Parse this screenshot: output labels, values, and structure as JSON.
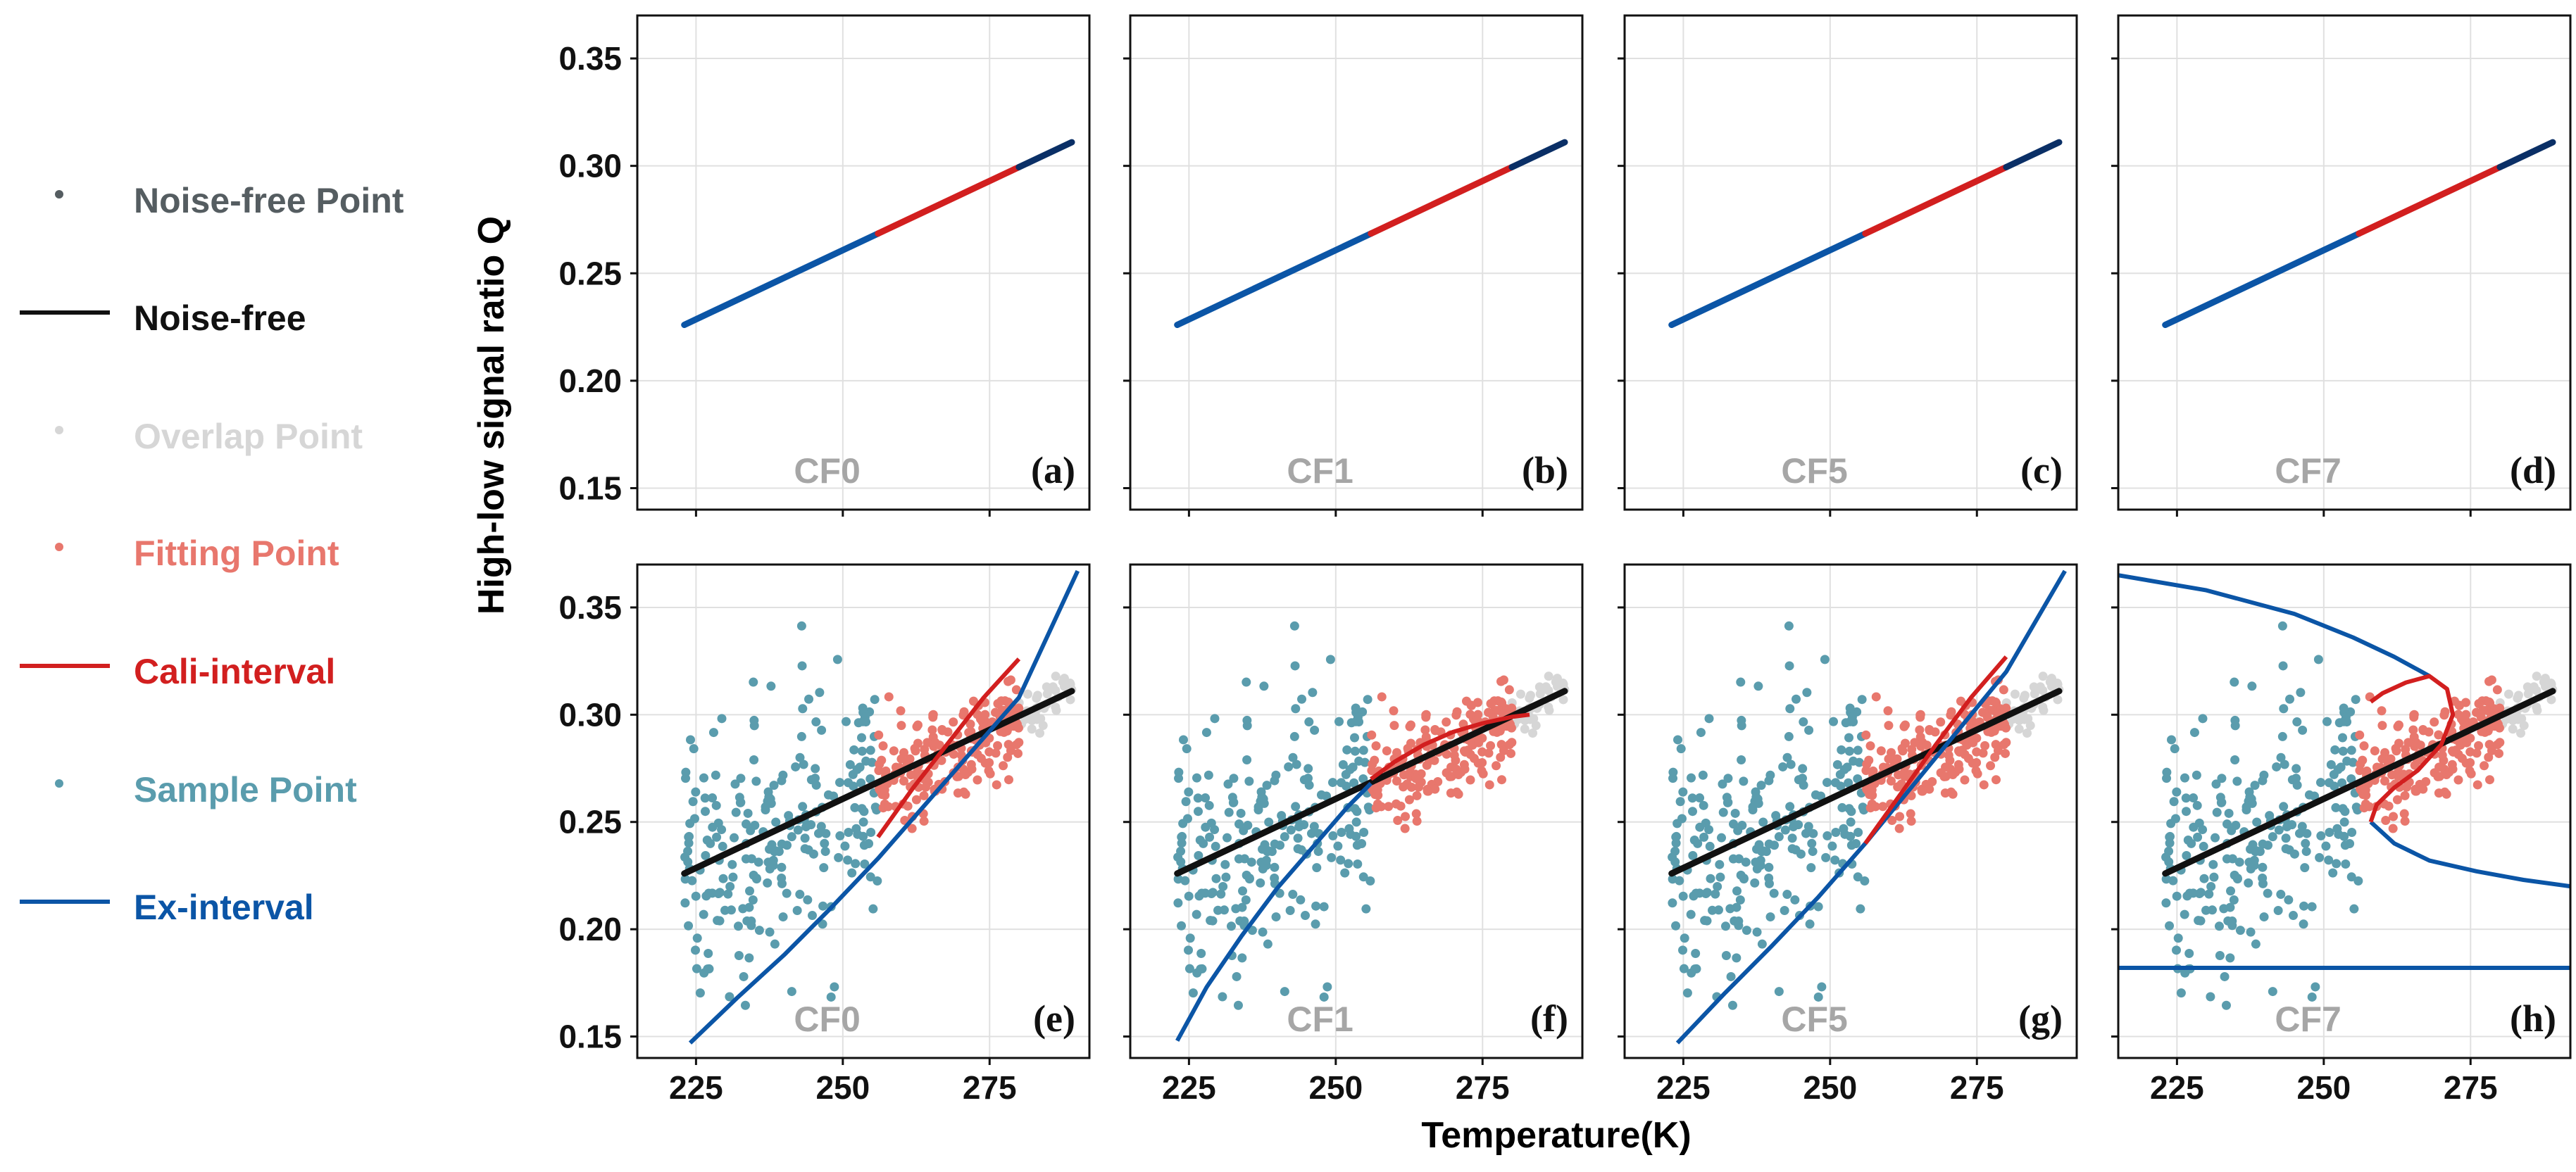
{
  "legend": {
    "items": [
      {
        "key": "noise_free_point",
        "label": "Noise-free Point",
        "kind": "point",
        "color": "#555d61"
      },
      {
        "key": "noise_free",
        "label": "Noise-free",
        "kind": "line",
        "color": "#111111"
      },
      {
        "key": "overlap_point",
        "label": "Overlap Point",
        "kind": "point",
        "color": "#d6d6d6"
      },
      {
        "key": "fitting_point",
        "label": "Fitting Point",
        "kind": "point",
        "color": "#e8776d"
      },
      {
        "key": "cali_interval",
        "label": "Cali-interval",
        "kind": "line",
        "color": "#d21f1f"
      },
      {
        "key": "sample_point",
        "label": "Sample Point",
        "kind": "point",
        "color": "#5a9cad"
      },
      {
        "key": "ex_interval",
        "label": "Ex-interval",
        "kind": "line",
        "color": "#0b55a6"
      }
    ]
  },
  "chart_data": {
    "type": "scatter",
    "title": "",
    "xlabel": "Temperature(K)",
    "ylabel": "High-low signal ratio Q",
    "xlim": [
      215,
      292
    ],
    "ylim": [
      0.14,
      0.37
    ],
    "xticks": [
      225,
      250,
      275
    ],
    "yticks": [
      0.15,
      0.2,
      0.25,
      0.3,
      0.35
    ],
    "ytick_labels": [
      "0.15",
      "0.20",
      "0.25",
      "0.30",
      "0.35"
    ],
    "xtick_labels": [
      "225",
      "250",
      "275"
    ],
    "grid": true,
    "noise_free_line": {
      "x": [
        223,
        289
      ],
      "y": [
        0.226,
        0.311
      ]
    },
    "top_row_segments": [
      {
        "role": "sample",
        "x": [
          223,
          256
        ]
      },
      {
        "role": "fitting",
        "x": [
          256,
          280
        ]
      },
      {
        "role": "overlap",
        "x": [
          280,
          289
        ]
      }
    ],
    "panels": [
      {
        "letter": "(a)",
        "cf": "CF0",
        "row": "top"
      },
      {
        "letter": "(b)",
        "cf": "CF1",
        "row": "top"
      },
      {
        "letter": "(c)",
        "cf": "CF5",
        "row": "top"
      },
      {
        "letter": "(d)",
        "cf": "CF7",
        "row": "top"
      },
      {
        "letter": "(e)",
        "cf": "CF0",
        "row": "bottom",
        "cali_curve": {
          "x": [
            256,
            262,
            268,
            274,
            280
          ],
          "y": [
            0.243,
            0.266,
            0.287,
            0.308,
            0.326
          ]
        },
        "ex_curve": {
          "x": [
            224,
            232,
            240,
            248,
            256,
            280,
            290
          ],
          "y": [
            0.147,
            0.168,
            0.188,
            0.21,
            0.233,
            0.308,
            0.367
          ]
        }
      },
      {
        "letter": "(f)",
        "cf": "CF1",
        "row": "bottom",
        "cali_curve": {
          "x": [
            256,
            260,
            265,
            270,
            275,
            280,
            283
          ],
          "y": [
            0.27,
            0.278,
            0.286,
            0.292,
            0.296,
            0.299,
            0.3
          ]
        },
        "ex_curve": {
          "x": [
            223,
            228,
            234,
            240,
            246,
            252,
            256
          ],
          "y": [
            0.148,
            0.173,
            0.197,
            0.219,
            0.238,
            0.257,
            0.268
          ]
        }
      },
      {
        "letter": "(g)",
        "cf": "CF5",
        "row": "bottom",
        "cali_curve": {
          "x": [
            256,
            262,
            268,
            274,
            280
          ],
          "y": [
            0.24,
            0.263,
            0.286,
            0.308,
            0.327
          ]
        },
        "ex_curve": {
          "x": [
            224,
            232,
            240,
            248,
            256,
            280,
            290
          ],
          "y": [
            0.147,
            0.17,
            0.192,
            0.215,
            0.24,
            0.32,
            0.367
          ]
        }
      },
      {
        "letter": "(h)",
        "cf": "CF7",
        "row": "bottom",
        "cali_curve": {
          "x": [
            258,
            259,
            262,
            266,
            270,
            272,
            271,
            268,
            264,
            260,
            258
          ],
          "y": [
            0.25,
            0.258,
            0.266,
            0.274,
            0.286,
            0.3,
            0.312,
            0.318,
            0.315,
            0.31,
            0.306
          ]
        },
        "ex_curve": {
          "x": [
            215,
            230,
            245,
            255,
            262,
            266,
            268
          ],
          "y": [
            0.365,
            0.358,
            0.347,
            0.336,
            0.327,
            0.321,
            0.318
          ]
        },
        "ex_curve2": {
          "x": [
            258,
            262,
            268,
            276,
            284,
            292
          ],
          "y": [
            0.25,
            0.24,
            0.232,
            0.227,
            0.223,
            0.22
          ]
        },
        "ex_flat": {
          "x": [
            215,
            292
          ],
          "y": [
            0.182,
            0.182
          ]
        }
      }
    ],
    "scatter_sample_seed": 7,
    "colors": {
      "sample": "#5a9cad",
      "fitting": "#e8776d",
      "overlap": "#d6d6d6",
      "cali": "#d21f1f",
      "ex": "#0b55a6",
      "noise": "#111111",
      "panel_text": "#a6a6a6"
    }
  }
}
